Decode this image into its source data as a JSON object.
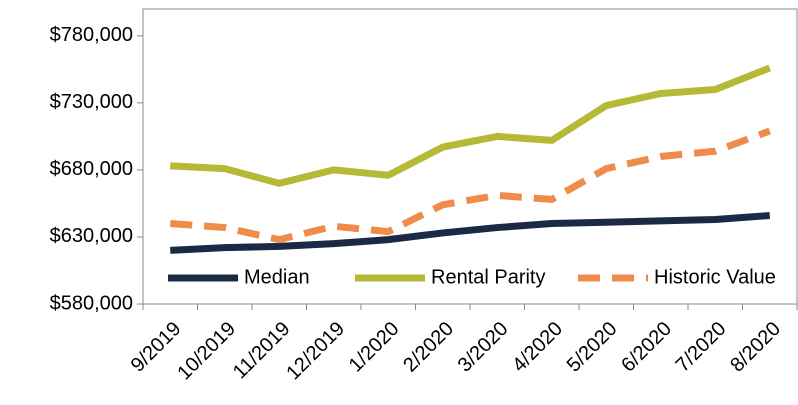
{
  "chart_data": {
    "type": "line",
    "categories": [
      "9/2019",
      "10/2019",
      "11/2019",
      "12/2019",
      "1/2020",
      "2/2020",
      "3/2020",
      "4/2020",
      "5/2020",
      "6/2020",
      "7/2020",
      "8/2020"
    ],
    "series": [
      {
        "name": "Median",
        "color": "#1b2a44",
        "dashed": false,
        "values": [
          620000,
          622000,
          623000,
          625000,
          628000,
          633000,
          637000,
          640000,
          641000,
          642000,
          643000,
          646000
        ]
      },
      {
        "name": "Rental Parity",
        "color": "#b5b935",
        "dashed": false,
        "values": [
          683000,
          681000,
          670000,
          680000,
          676000,
          697000,
          705000,
          702000,
          728000,
          737000,
          740000,
          756000
        ]
      },
      {
        "name": "Historic Value",
        "color": "#ef8c4a",
        "dashed": true,
        "values": [
          640000,
          637000,
          628000,
          638000,
          634000,
          654000,
          661000,
          658000,
          681000,
          690000,
          694000,
          709000
        ]
      }
    ],
    "ylim": [
      580000,
      800000
    ],
    "yticks": [
      {
        "value": 580000,
        "label": "$580,000"
      },
      {
        "value": 630000,
        "label": "$630,000"
      },
      {
        "value": 680000,
        "label": "$680,000"
      },
      {
        "value": 730000,
        "label": "$730,000"
      },
      {
        "value": 780000,
        "label": "$780,000"
      }
    ],
    "grid": false,
    "legend": "bottom"
  }
}
